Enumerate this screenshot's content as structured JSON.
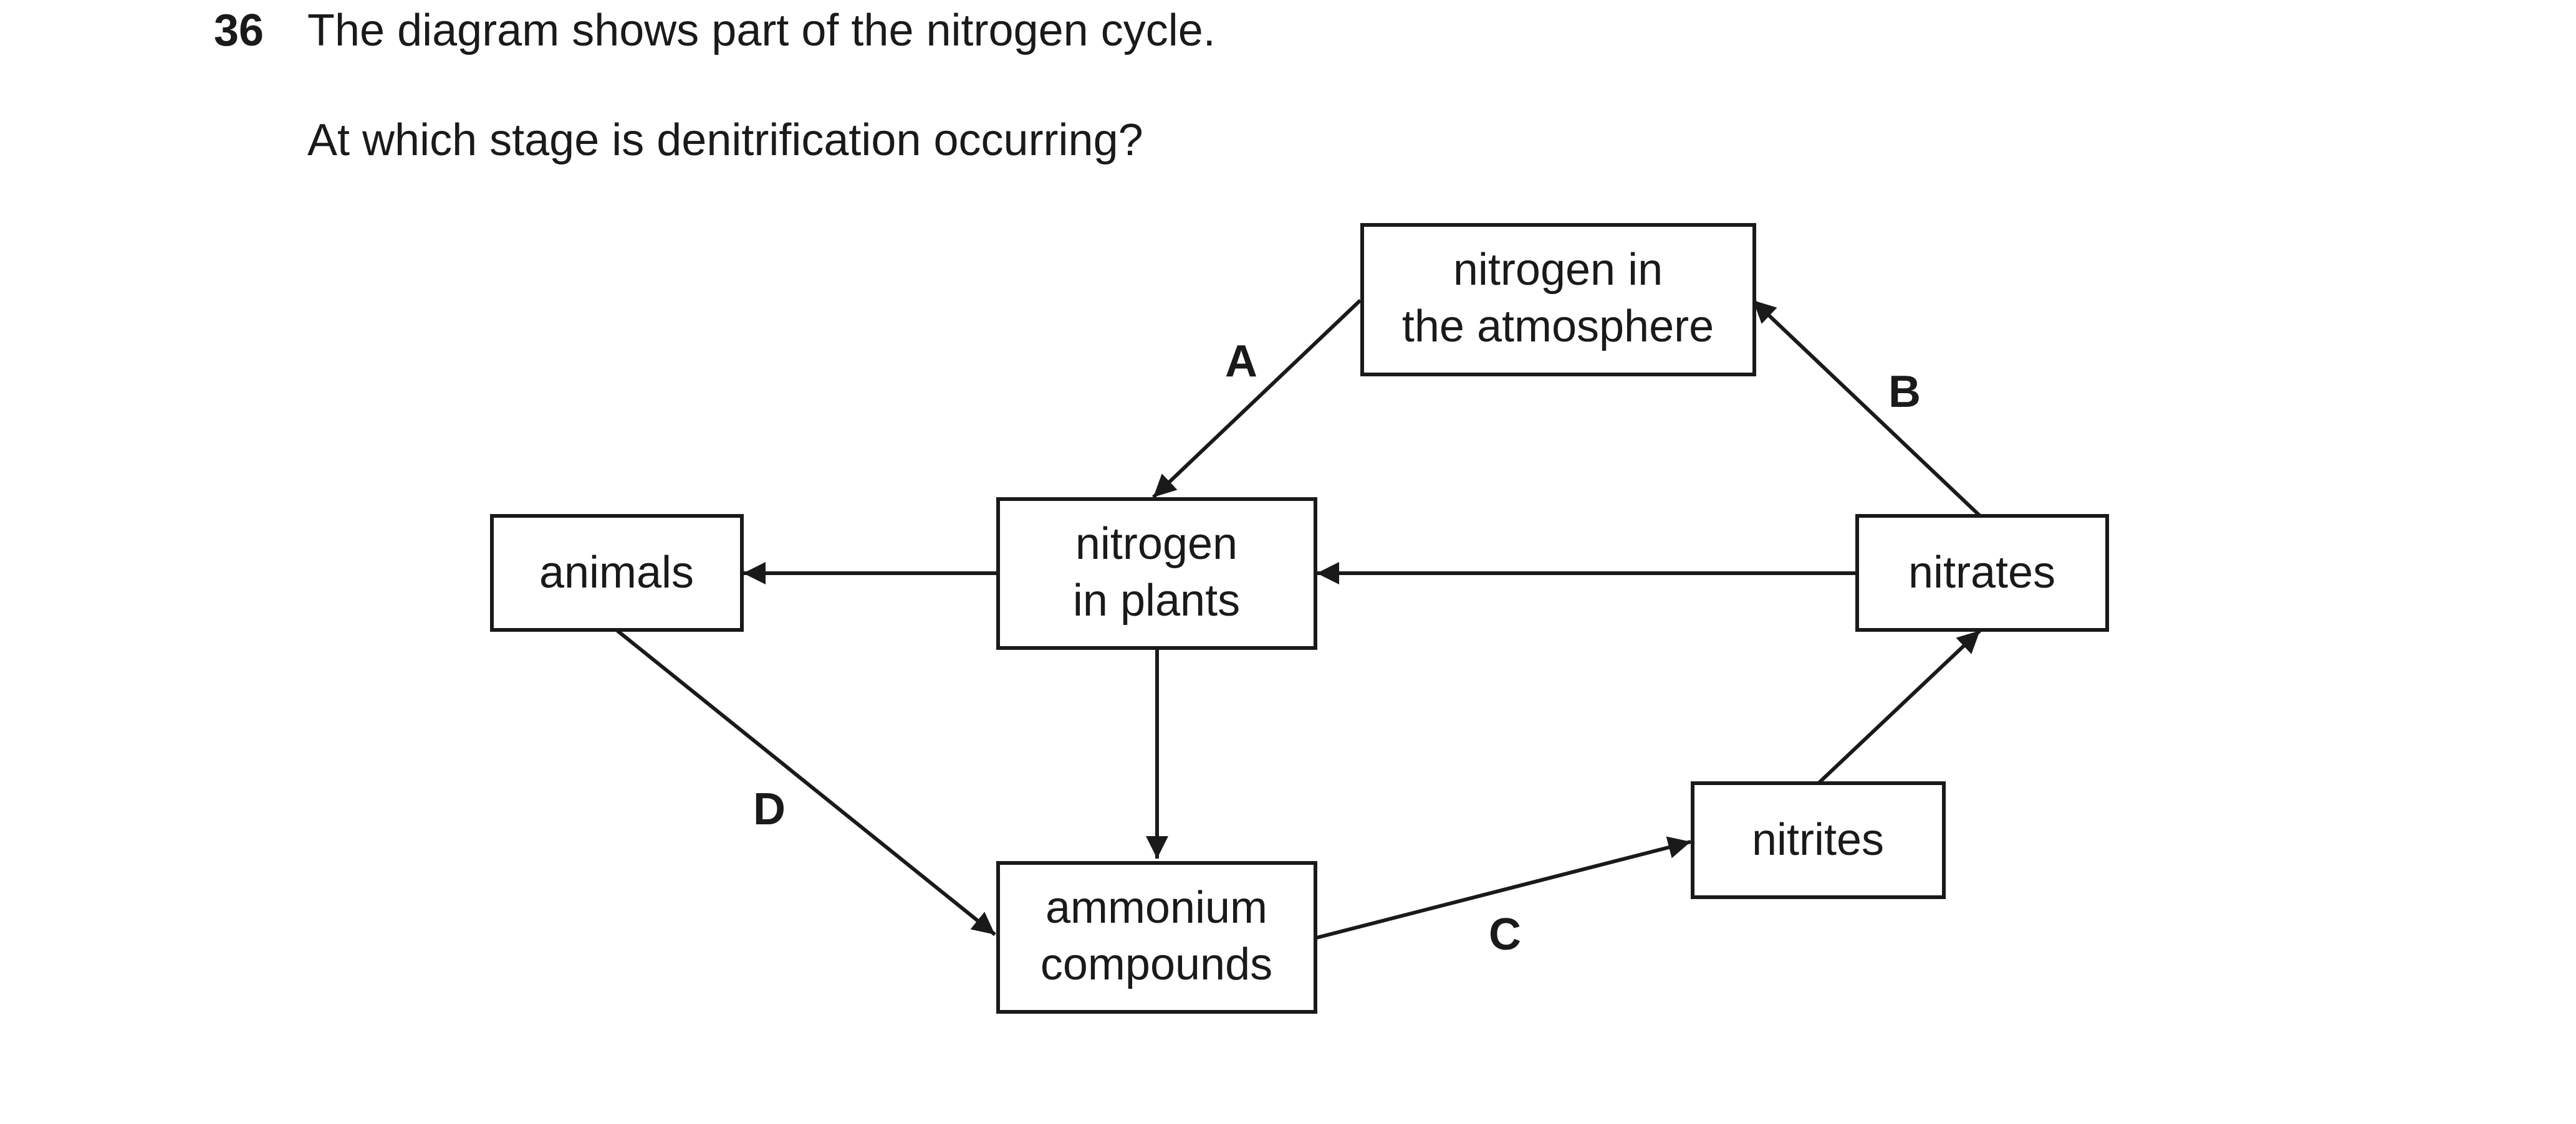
{
  "question": {
    "number": "36",
    "text": "The diagram shows part of the nitrogen cycle.",
    "prompt": "At which stage is denitrification occurring?"
  },
  "diagram": {
    "boxes": {
      "atmosphere": [
        "nitrogen in",
        "the atmosphere"
      ],
      "plants": [
        "nitrogen",
        "in plants"
      ],
      "animals": [
        "animals"
      ],
      "nitrates": [
        "nitrates"
      ],
      "nitrites": [
        "nitrites"
      ],
      "ammonium": [
        "ammonium",
        "compounds"
      ]
    },
    "stage_labels": {
      "a": "A",
      "b": "B",
      "c": "C",
      "d": "D"
    }
  }
}
